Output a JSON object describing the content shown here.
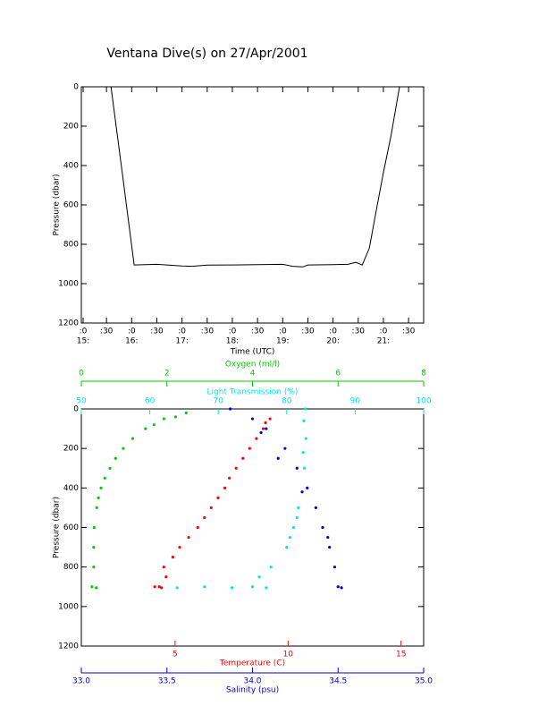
{
  "title": "Ventana Dive(s) on 27/Apr/2001",
  "chart_data": [
    {
      "type": "line",
      "ylabel": "Pressure (dbar)",
      "xlabel": "Time (UTC)",
      "y_inverted": true,
      "ylim": [
        0,
        1200
      ],
      "yticks": [
        0,
        200,
        400,
        600,
        800,
        1000,
        1200
      ],
      "xlim": [
        15,
        21.8
      ],
      "xticks": [
        {
          "value": 15,
          "label": ":0"
        },
        {
          "value": 15.5,
          "label": ":30"
        },
        {
          "value": 16,
          "label": ":0"
        },
        {
          "value": 16.5,
          "label": ":30"
        },
        {
          "value": 17,
          "label": ":0"
        },
        {
          "value": 17.5,
          "label": ":30"
        },
        {
          "value": 18,
          "label": ":0"
        },
        {
          "value": 18.5,
          "label": ":30"
        },
        {
          "value": 19,
          "label": ":0"
        },
        {
          "value": 19.5,
          "label": ":30"
        },
        {
          "value": 20,
          "label": ":0"
        },
        {
          "value": 20.5,
          "label": ":30"
        },
        {
          "value": 21,
          "label": ":0"
        },
        {
          "value": 21.5,
          "label": ":30"
        }
      ],
      "xtick_hours": [
        {
          "value": 15,
          "label": "15:"
        },
        {
          "value": 16,
          "label": "16:"
        },
        {
          "value": 17,
          "label": "17:"
        },
        {
          "value": 18,
          "label": "18:"
        },
        {
          "value": 19,
          "label": "19:"
        },
        {
          "value": 20,
          "label": "20:"
        },
        {
          "value": 21,
          "label": "21:"
        }
      ],
      "series": [
        {
          "color": "#000000",
          "x": [
            15.59,
            15.7,
            15.8,
            15.9,
            16.0,
            16.05,
            16.5,
            17.0,
            17.2,
            17.5,
            18.0,
            18.5,
            19.0,
            19.2,
            19.4,
            19.5,
            20.0,
            20.3,
            20.45,
            20.58,
            20.72,
            20.85,
            21.0,
            21.15,
            21.32
          ],
          "values": [
            0,
            216,
            413,
            610,
            807,
            905,
            902,
            910,
            912,
            906,
            905,
            903,
            902,
            912,
            915,
            905,
            903,
            902,
            892,
            905,
            820,
            640,
            437,
            250,
            0
          ]
        }
      ]
    },
    {
      "type": "scatter",
      "ylabel": "Pressure (dbar)",
      "y_inverted": true,
      "ylim": [
        0,
        1200
      ],
      "yticks": [
        0,
        200,
        400,
        600,
        800,
        1000,
        1200
      ],
      "xaxes": [
        {
          "label": "Temperature (C)",
          "color": "#ff0000",
          "xlim": [
            0.85,
            16
          ],
          "xticks": [
            5,
            10,
            15
          ]
        },
        {
          "label": "Salinity (psu)",
          "color": "#0000cc",
          "xlim": [
            33,
            35
          ],
          "xticks": [
            {
              "value": 33,
              "label": "33.0"
            },
            {
              "value": 33.5,
              "label": "33.5"
            },
            {
              "value": 34,
              "label": "34.0"
            },
            {
              "value": 34.5,
              "label": "34.5"
            },
            {
              "value": 35,
              "label": "35.0"
            }
          ]
        },
        {
          "label": "Oxygen (ml/l)",
          "color": "#00cc00",
          "xlim": [
            0,
            8
          ],
          "xticks": [
            0,
            2,
            4,
            6,
            8
          ]
        },
        {
          "label": "Light Transmission (%)",
          "color": "#00e5e5",
          "xlim": [
            50,
            100
          ],
          "xticks": [
            50,
            60,
            70,
            80,
            90,
            100
          ]
        }
      ],
      "series": [
        {
          "xaxis": 0,
          "color": "#ff0000",
          "x": [
            9.2,
            8.9,
            8.3,
            7.7,
            7.2,
            6.6,
            6.0,
            5.2,
            4.5,
            4.3,
            9.0,
            8.6,
            8.0,
            7.4,
            6.9,
            6.3,
            5.6,
            4.9,
            4.6,
            4.1,
            4.4
          ],
          "y": [
            50,
            100,
            200,
            300,
            400,
            500,
            600,
            700,
            800,
            900,
            70,
            150,
            250,
            350,
            450,
            550,
            650,
            750,
            850,
            900,
            905
          ]
        },
        {
          "xaxis": 1,
          "color": "#0000cc",
          "x": [
            33.87,
            34.0,
            34.08,
            34.19,
            34.26,
            34.32,
            34.37,
            34.41,
            34.45,
            34.48,
            34.5,
            34.52,
            34.05,
            34.15,
            34.29,
            34.44
          ],
          "y": [
            0,
            50,
            100,
            200,
            300,
            400,
            500,
            600,
            700,
            800,
            900,
            905,
            120,
            250,
            420,
            650
          ]
        },
        {
          "xaxis": 2,
          "color": "#00cc00",
          "x": [
            2.45,
            1.93,
            1.5,
            0.98,
            0.67,
            0.46,
            0.36,
            0.3,
            0.29,
            0.29,
            0.25,
            0.35,
            2.2,
            1.7,
            1.2,
            0.8,
            0.55,
            0.4
          ],
          "y": [
            20,
            50,
            100,
            200,
            300,
            400,
            500,
            600,
            700,
            800,
            900,
            905,
            40,
            80,
            150,
            250,
            350,
            450
          ]
        },
        {
          "xaxis": 3,
          "color": "#00e5e5",
          "x": [
            82.7,
            82.5,
            82.8,
            82.4,
            82.6,
            81.7,
            81.0,
            80.0,
            77.7,
            76.0,
            64.0,
            68.0,
            72.0,
            75.0,
            77.0,
            81.5,
            80.5
          ],
          "y": [
            0,
            60,
            150,
            220,
            300,
            500,
            600,
            700,
            800,
            850,
            905,
            900,
            905,
            900,
            905,
            550,
            650
          ]
        }
      ]
    }
  ]
}
